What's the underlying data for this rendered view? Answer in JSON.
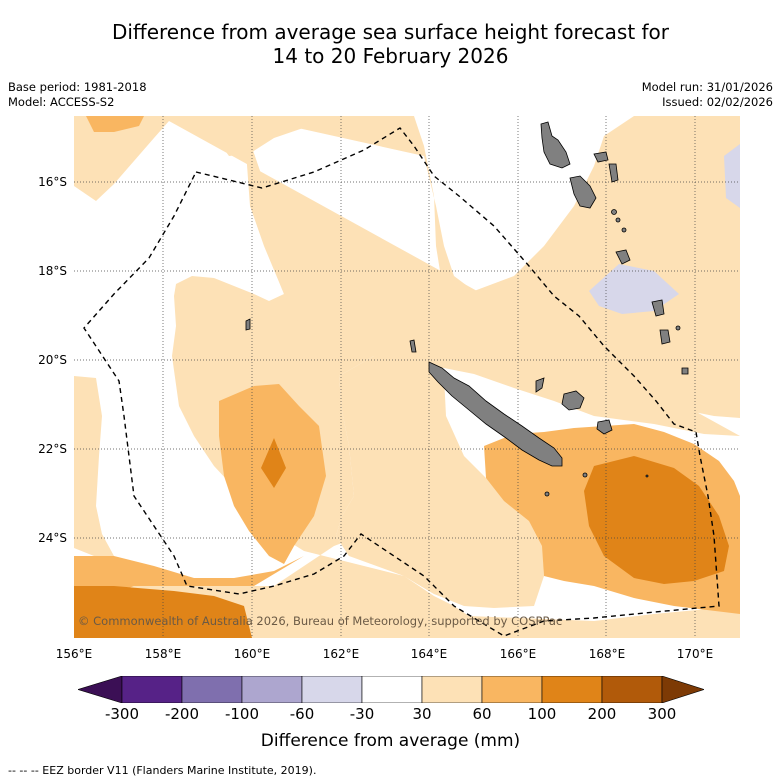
{
  "title_line1": "Difference from average sea surface height forecast for",
  "title_line2": "14 to 20 February 2026",
  "base_period": "Base period: 1981-2018",
  "model": "Model: ACCESS-S2",
  "model_run": "Model run: 31/01/2026",
  "issued": "Issued: 02/02/2026",
  "lat_labels": [
    "16°S",
    "18°S",
    "20°S",
    "22°S",
    "24°S"
  ],
  "lon_labels": [
    "156°E",
    "158°E",
    "160°E",
    "162°E",
    "164°E",
    "166°E",
    "168°E",
    "170°E"
  ],
  "copyright": "© Commonwealth of Australia 2026, Bureau of Meteorology, supported by COSPPac",
  "colorbar": {
    "title": "Difference from average (mm)",
    "tick_labels": [
      "-300",
      "-200",
      "-100",
      "-60",
      "-30",
      "30",
      "60",
      "100",
      "200",
      "300"
    ],
    "colors": [
      "#3b0f55",
      "#562287",
      "#7f6fae",
      "#ada6cf",
      "#d7d7ea",
      "#ffffff",
      "#fde1b6",
      "#f9b661",
      "#e08418",
      "#b15a0a",
      "#7d3a05"
    ]
  },
  "footnote": "-- -- -- EEZ border V11 (Flanders Marine Institute, 2019)."
}
